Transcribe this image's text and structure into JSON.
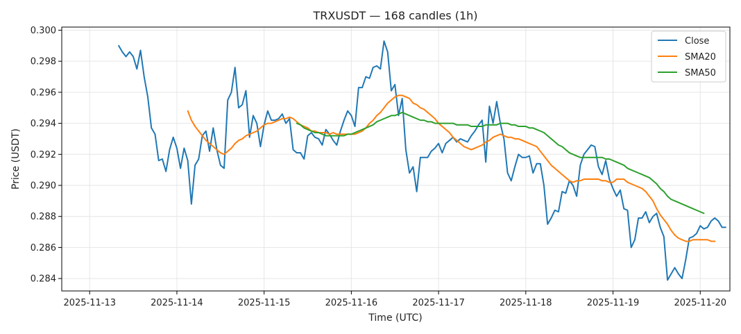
{
  "chart_data": {
    "type": "line",
    "title": "TRXUSDT — 168 candles (1h)",
    "xlabel": "Time (UTC)",
    "ylabel": "Price (USDT)",
    "ylim": [
      0.2832,
      0.3002
    ],
    "xlim": [
      -0.32,
      7.34
    ],
    "grid": true,
    "legend_position": "top-right",
    "x_ticks": [
      {
        "value": 0,
        "label": "2025-11-13"
      },
      {
        "value": 1,
        "label": "2025-11-14"
      },
      {
        "value": 2,
        "label": "2025-11-15"
      },
      {
        "value": 3,
        "label": "2025-11-16"
      },
      {
        "value": 4,
        "label": "2025-11-17"
      },
      {
        "value": 5,
        "label": "2025-11-18"
      },
      {
        "value": 6,
        "label": "2025-11-19"
      },
      {
        "value": 7,
        "label": "2025-11-20"
      }
    ],
    "y_ticks": [
      {
        "value": 0.284,
        "label": "0.284"
      },
      {
        "value": 0.286,
        "label": "0.286"
      },
      {
        "value": 0.288,
        "label": "0.288"
      },
      {
        "value": 0.29,
        "label": "0.290"
      },
      {
        "value": 0.292,
        "label": "0.292"
      },
      {
        "value": 0.294,
        "label": "0.294"
      },
      {
        "value": 0.296,
        "label": "0.296"
      },
      {
        "value": 0.298,
        "label": "0.298"
      },
      {
        "value": 0.3,
        "label": "0.300"
      }
    ],
    "series": [
      {
        "name": "Close",
        "color": "#1f77b4",
        "start": 0.333,
        "step": 0.041667,
        "values": [
          0.299,
          0.2986,
          0.2983,
          0.2986,
          0.2983,
          0.2975,
          0.2987,
          0.297,
          0.2957,
          0.2937,
          0.2933,
          0.2916,
          0.2917,
          0.2909,
          0.2923,
          0.2931,
          0.2924,
          0.2911,
          0.2924,
          0.2916,
          0.2888,
          0.2913,
          0.2917,
          0.2932,
          0.2935,
          0.2922,
          0.2937,
          0.2923,
          0.2913,
          0.2911,
          0.2955,
          0.296,
          0.2976,
          0.295,
          0.2952,
          0.2961,
          0.2931,
          0.2945,
          0.294,
          0.2925,
          0.2939,
          0.2948,
          0.2942,
          0.2942,
          0.2943,
          0.2946,
          0.294,
          0.2943,
          0.2923,
          0.2921,
          0.2921,
          0.2917,
          0.2932,
          0.2934,
          0.2931,
          0.293,
          0.2926,
          0.2936,
          0.2933,
          0.2929,
          0.2926,
          0.2935,
          0.2942,
          0.2948,
          0.2945,
          0.2938,
          0.2963,
          0.2963,
          0.297,
          0.2969,
          0.2976,
          0.2977,
          0.2975,
          0.2993,
          0.2986,
          0.2961,
          0.2965,
          0.2945,
          0.2956,
          0.2923,
          0.2908,
          0.2912,
          0.2896,
          0.2918,
          0.2918,
          0.2918,
          0.2922,
          0.2924,
          0.2927,
          0.2921,
          0.2927,
          0.2929,
          0.2931,
          0.2928,
          0.293,
          0.2929,
          0.2928,
          0.2932,
          0.2935,
          0.2939,
          0.2942,
          0.2915,
          0.2951,
          0.294,
          0.2954,
          0.294,
          0.293,
          0.2908,
          0.2903,
          0.2912,
          0.292,
          0.2918,
          0.2918,
          0.2919,
          0.2908,
          0.2914,
          0.2914,
          0.29,
          0.2875,
          0.2879,
          0.2884,
          0.2883,
          0.2896,
          0.2895,
          0.2903,
          0.29,
          0.2893,
          0.2913,
          0.292,
          0.2923,
          0.2926,
          0.2925,
          0.2912,
          0.2907,
          0.2916,
          0.2904,
          0.2898,
          0.2893,
          0.2897,
          0.2885,
          0.2884,
          0.286,
          0.2865,
          0.2879,
          0.2879,
          0.2883,
          0.2876,
          0.288,
          0.2882,
          0.2873,
          0.2867,
          0.2839,
          0.2843,
          0.2847,
          0.2843,
          0.284,
          0.2852,
          0.2866,
          0.2867,
          0.2869,
          0.2874,
          0.2872,
          0.2873,
          0.2877,
          0.2879,
          0.2877,
          0.2873,
          0.2873
        ]
      },
      {
        "name": "SMA20",
        "color": "#ff7f0e",
        "start": 1.125,
        "step": 0.041667,
        "values": [
          0.2948,
          0.2942,
          0.2938,
          0.2935,
          0.2932,
          0.2929,
          0.2927,
          0.2925,
          0.2923,
          0.2921,
          0.292,
          0.2922,
          0.2924,
          0.2927,
          0.2929,
          0.293,
          0.2932,
          0.2933,
          0.2934,
          0.2935,
          0.2937,
          0.2939,
          0.294,
          0.294,
          0.2941,
          0.2942,
          0.2943,
          0.2943,
          0.2944,
          0.2943,
          0.2941,
          0.2939,
          0.2938,
          0.2937,
          0.2935,
          0.2935,
          0.2934,
          0.2934,
          0.2934,
          0.2933,
          0.2934,
          0.2933,
          0.2933,
          0.2933,
          0.2933,
          0.2933,
          0.2933,
          0.2934,
          0.2935,
          0.2937,
          0.294,
          0.2942,
          0.2945,
          0.2947,
          0.295,
          0.2953,
          0.2955,
          0.2957,
          0.2958,
          0.2958,
          0.2957,
          0.2956,
          0.2953,
          0.2952,
          0.295,
          0.2949,
          0.2947,
          0.2945,
          0.2943,
          0.294,
          0.2938,
          0.2936,
          0.2934,
          0.2931,
          0.2929,
          0.2927,
          0.2925,
          0.2924,
          0.2923,
          0.2924,
          0.2925,
          0.2926,
          0.2928,
          0.2929,
          0.2931,
          0.2932,
          0.2933,
          0.2932,
          0.2931,
          0.2931,
          0.293,
          0.293,
          0.2929,
          0.2928,
          0.2927,
          0.2926,
          0.2925,
          0.2922,
          0.2919,
          0.2916,
          0.2913,
          0.2911,
          0.2909,
          0.2907,
          0.2905,
          0.2903,
          0.2902,
          0.2903,
          0.2903,
          0.2904,
          0.2904,
          0.2904,
          0.2904,
          0.2904,
          0.2903,
          0.2903,
          0.2902,
          0.2902,
          0.2904,
          0.2904,
          0.2904,
          0.2902,
          0.2901,
          0.29,
          0.2899,
          0.2898,
          0.2896,
          0.2893,
          0.289,
          0.2885,
          0.2881,
          0.2878,
          0.2875,
          0.2871,
          0.2868,
          0.2866,
          0.2865,
          0.2864,
          0.2864,
          0.2865,
          0.2865,
          0.2865,
          0.2865,
          0.2865,
          0.2864,
          0.2864
        ]
      },
      {
        "name": "SMA50",
        "color": "#2ca02c",
        "start": 2.375,
        "step": 0.041667,
        "values": [
          0.294,
          0.2939,
          0.2937,
          0.2936,
          0.2935,
          0.2934,
          0.2934,
          0.2933,
          0.2932,
          0.2932,
          0.2932,
          0.2932,
          0.2932,
          0.2932,
          0.2933,
          0.2933,
          0.2934,
          0.2935,
          0.2936,
          0.2937,
          0.2938,
          0.2939,
          0.2941,
          0.2942,
          0.2943,
          0.2944,
          0.2945,
          0.2945,
          0.2946,
          0.2947,
          0.2946,
          0.2945,
          0.2944,
          0.2943,
          0.2942,
          0.2942,
          0.2941,
          0.2941,
          0.294,
          0.294,
          0.294,
          0.294,
          0.294,
          0.294,
          0.2939,
          0.2939,
          0.2939,
          0.2939,
          0.2938,
          0.2938,
          0.2938,
          0.2938,
          0.2939,
          0.2939,
          0.2939,
          0.2939,
          0.294,
          0.294,
          0.294,
          0.2939,
          0.2939,
          0.2938,
          0.2938,
          0.2938,
          0.2937,
          0.2937,
          0.2936,
          0.2935,
          0.2934,
          0.2932,
          0.293,
          0.2928,
          0.2926,
          0.2925,
          0.2923,
          0.2921,
          0.292,
          0.2919,
          0.2918,
          0.2918,
          0.2918,
          0.2918,
          0.2918,
          0.2918,
          0.2918,
          0.2917,
          0.2917,
          0.2916,
          0.2915,
          0.2914,
          0.2913,
          0.2911,
          0.291,
          0.2909,
          0.2908,
          0.2907,
          0.2906,
          0.2905,
          0.2903,
          0.2901,
          0.2898,
          0.2896,
          0.2893,
          0.2891,
          0.289,
          0.2889,
          0.2888,
          0.2887,
          0.2886,
          0.2885,
          0.2884,
          0.2883,
          0.2882
        ]
      }
    ]
  }
}
